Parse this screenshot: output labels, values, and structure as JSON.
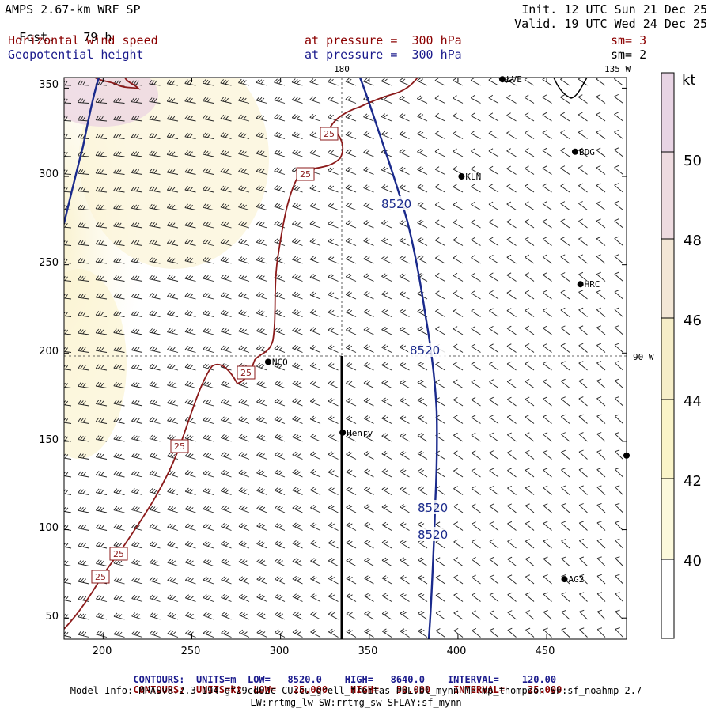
{
  "header": {
    "title_left": "AMPS 2.67-km WRF SP",
    "fcst_label": "Fcst.",
    "fcst_value": "79 h",
    "init": "Init. 12 UTC Sun 21 Dec 25",
    "valid": "Valid. 19 UTC Wed 24 Dec 25",
    "field1": "Horizontal wind speed",
    "field2": "Geopotential height",
    "pressure1": "at pressure =  300 hPa",
    "pressure2": "at pressure =  300 hPa",
    "sm1": "sm= 3",
    "sm2": "sm= 2"
  },
  "map": {
    "lon_180": "180",
    "lon_135w": "135 W",
    "lon_90w": "90 W",
    "x_ticks": [
      "200",
      "250",
      "300",
      "350",
      "400",
      "450"
    ],
    "y_ticks": [
      "350",
      "300",
      "250",
      "200",
      "150",
      "100",
      "50"
    ],
    "colorbar_unit": "kt",
    "colorbar_labels": [
      "50",
      "48",
      "46",
      "44",
      "42",
      "40"
    ],
    "colorbar_colors": [
      "#e8d4e4",
      "#eedbe0",
      "#f3e7d6",
      "#f6eec8",
      "#faf4c8",
      "#fcf9dc",
      "#ffffff"
    ],
    "stations": [
      {
        "name": "LVE",
        "x": 425,
        "y": 355
      },
      {
        "name": "BDG",
        "x": 466,
        "y": 314
      },
      {
        "name": "KLN",
        "x": 402,
        "y": 300
      },
      {
        "name": "HRC",
        "x": 469,
        "y": 239
      },
      {
        "name": "NCO",
        "x": 293,
        "y": 195
      },
      {
        "name": "Henry",
        "x": 335,
        "y": 155
      },
      {
        "name": "",
        "x": 495,
        "y": 142
      },
      {
        "name": "AG2",
        "x": 460,
        "y": 72
      }
    ],
    "height_labels": [
      "8520",
      "8520",
      "8520",
      "8520"
    ],
    "wind_labels": [
      "25",
      "25",
      "25",
      "25",
      "25",
      "25"
    ]
  },
  "contours_legend": {
    "row1": {
      "label": "CONTOURS:",
      "units": "UNITS=m",
      "low": "LOW=   8520.0",
      "high": "HIGH=   8640.0",
      "interval": "INTERVAL=    120.00"
    },
    "row2": {
      "label": "CONTOURS:",
      "units": "UNITS=kt",
      "low": "LOW=   25.000",
      "high": "HIGH=   50.000",
      "interval": "INTERVAL=    25.000"
    }
  },
  "model_info": {
    "line1": "Model Info: MPASv8.2.3-194-gf29cd82c CU:cu_grell_freitas PBL:bl_mynn MP:mp_thompson SF:sf_noahmp 2.7",
    "line2": "LW:rrtmg_lw SW:rrtmg_sw SFLAY:sf_mynn"
  }
}
